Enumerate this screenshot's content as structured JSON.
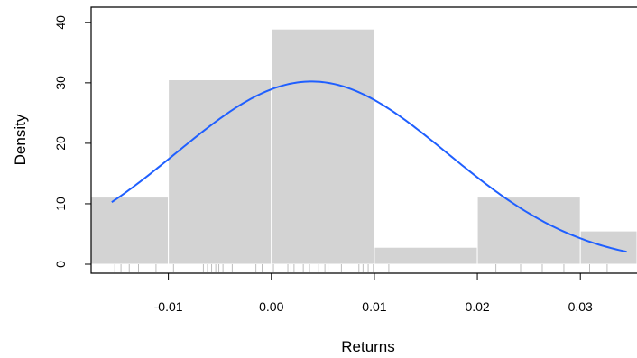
{
  "chart_data": {
    "type": "bar",
    "title": "",
    "xlabel": "Returns",
    "ylabel": "Density",
    "xlim": [
      -0.0175,
      0.0355
    ],
    "ylim": [
      0,
      44
    ],
    "x_ticks": [
      -0.01,
      0.0,
      0.01,
      0.02,
      0.03
    ],
    "x_tick_labels": [
      "-0.01",
      "0.00",
      "0.01",
      "0.02",
      "0.03"
    ],
    "y_ticks": [
      0,
      10,
      20,
      30,
      40
    ],
    "y_tick_labels": [
      "0",
      "10",
      "20",
      "30",
      "40"
    ],
    "histogram": {
      "bins": [
        {
          "start": -0.02,
          "end": -0.01,
          "density": 11.1
        },
        {
          "start": -0.01,
          "end": 0.0,
          "density": 30.5
        },
        {
          "start": 0.0,
          "end": 0.01,
          "density": 38.9
        },
        {
          "start": 0.01,
          "end": 0.02,
          "density": 2.8
        },
        {
          "start": 0.02,
          "end": 0.03,
          "density": 11.1
        },
        {
          "start": 0.03,
          "end": 0.04,
          "density": 5.5
        }
      ],
      "fill_color": "#d3d3d3",
      "edge_color": "#ffffff"
    },
    "normal_curve": {
      "mean": 0.0039,
      "sd": 0.0132,
      "x_range": [
        -0.0155,
        0.0345
      ],
      "color": "#1f5fff"
    },
    "rug": [
      -0.0152,
      -0.0146,
      -0.0138,
      -0.0129,
      -0.0112,
      -0.0095,
      -0.0066,
      -0.0062,
      -0.0058,
      -0.0054,
      -0.0051,
      -0.0047,
      -0.0038,
      -0.0015,
      -0.0009,
      0.0002,
      0.0016,
      0.0019,
      0.0022,
      0.0031,
      0.0037,
      0.0046,
      0.0052,
      0.0055,
      0.0068,
      0.0085,
      0.0089,
      0.0094,
      0.0099,
      0.0114,
      0.0218,
      0.0242,
      0.0263,
      0.0284,
      0.0309,
      0.0326
    ],
    "grid": false,
    "legend": "none"
  }
}
